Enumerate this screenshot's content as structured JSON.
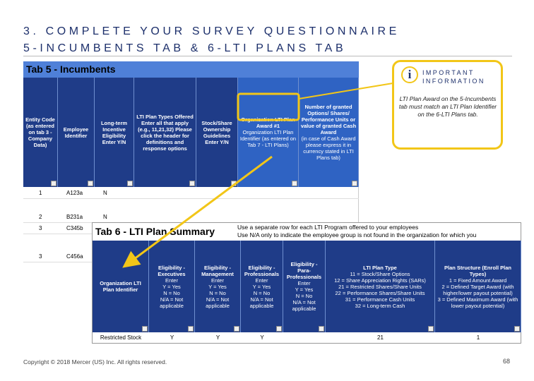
{
  "header": {
    "title_line1": "3. COMPLETE YOUR SURVEY QUESTIONNAIRE",
    "title_line2": "5-INCUMBENTS TAB & 6-LTI PLANS TAB"
  },
  "tab5": {
    "title": "Tab 5 - Incumbents",
    "columns": [
      {
        "head": "Entity Code (as entered on tab 3 - Company Data)"
      },
      {
        "head": "Employee Identifier"
      },
      {
        "head": "Long-term Incentive Eligibility Enter Y/N"
      },
      {
        "head": "LTI Plan Types Offered Enter all that apply (e.g., 11,21,32) Please click the header for definitions and response options"
      },
      {
        "head": "Stock/Share Ownership Guidelines Enter Y/N"
      },
      {
        "head": "Organization LTI Plan Award #1",
        "lines": [
          "Organization LTI Plan Identifier (as entered on Tab 7 - LTI Plans)"
        ]
      },
      {
        "head": "Number of granted Options/ Shares/ Performance Units or value of granted Cash Award",
        "lines": [
          "(in case of Cash Award please express it in currency stated in LTI Plans tab)"
        ]
      }
    ],
    "rows": [
      [
        "1",
        "A123a",
        "N"
      ],
      [
        "2",
        "B231a",
        "N"
      ],
      [
        "3",
        "C345b"
      ],
      [
        "3",
        "C456a"
      ]
    ]
  },
  "tab6": {
    "title": "Tab 6 - LTI Plan Summary",
    "notes": [
      "Use a separate row for each LTI Program offered to your employees",
      "Use N/A only to indicate the employee group is not found in the organization for which you"
    ],
    "columns": [
      {
        "head": "Organization LTI Plan Identifier"
      },
      {
        "head": "Eligibility - Executives",
        "lines": [
          "Enter",
          "Y = Yes",
          "N = No",
          "N/A = Not applicable"
        ]
      },
      {
        "head": "Eligibility - Management",
        "lines": [
          "Enter",
          "Y = Yes",
          "N = No",
          "N/A = Not applicable"
        ]
      },
      {
        "head": "Eligibility - Professionals",
        "lines": [
          "Enter",
          "Y = Yes",
          "N = No",
          "N/A = Not applicable"
        ]
      },
      {
        "head": "Eligibility - Para-Professionals",
        "lines": [
          "Enter",
          "Y = Yes",
          "N = No",
          "N/A = Not applicable"
        ]
      },
      {
        "head": "LTI Plan Type",
        "lines": [
          "11 = Stock/Share Options",
          "12 = Share Appreciation Rights (SARs)",
          "21 = Restricted Shares/Share Units",
          "22 = Performance Shares/Share Units",
          "31 = Performance Cash Units",
          "32 = Long-term Cash"
        ]
      },
      {
        "head": "Plan Structure (Enroll Plan Types)",
        "lines": [
          "1 = Fixed Amount Award",
          "2 = Defined Target Award (with higher/lower payout potential)",
          "3 = Defined Maximum Award (with lower payout potential)"
        ]
      }
    ],
    "rows": [
      {
        "identifier": "Restricted Stock",
        "executives": "Y",
        "management": "Y",
        "professionals": "Y",
        "plan_type": "21",
        "plan_structure": "1"
      }
    ]
  },
  "callout": {
    "title": "IMPORTANT INFORMATION",
    "body": "LTI Plan Award on the 5-Incumbents tab must match an LTI Plan Identifier on the 6-LTI Plans tab."
  },
  "footer": {
    "copyright": "Copyright © 2018 Mercer (US) Inc. All rights reserved.",
    "page": "68"
  }
}
